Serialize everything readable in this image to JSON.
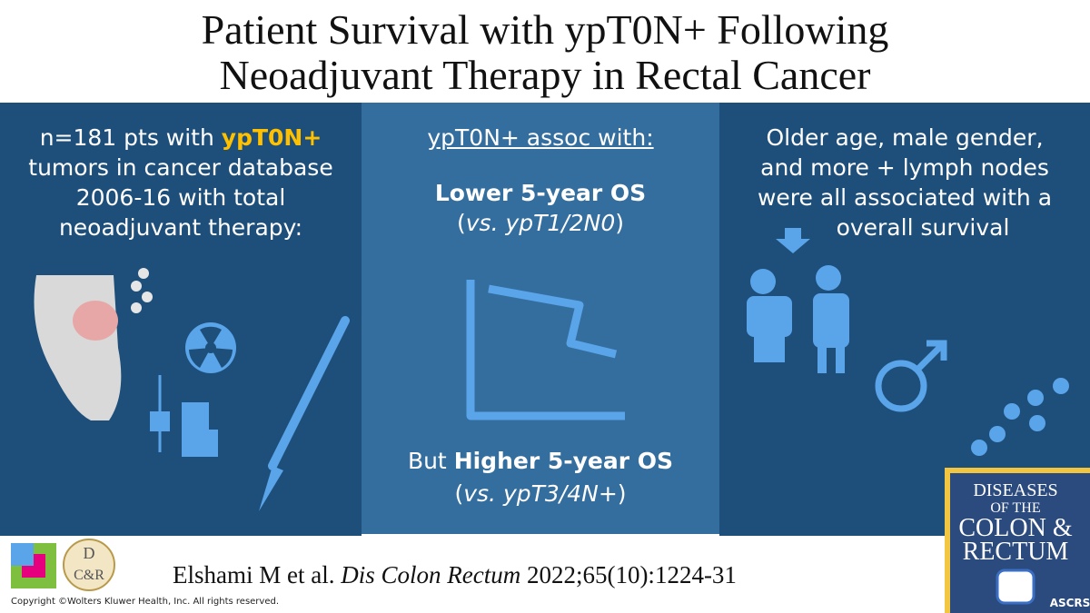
{
  "header": {
    "title_line1": "Patient Survival with ypT0N+ Following",
    "title_line2": "Neoadjuvant Therapy in Rectal Cancer"
  },
  "panels": [
    {
      "lines": [
        [
          "n=181 pts with ",
          "ypT0N+"
        ],
        [
          "tumors in cancer database"
        ],
        [
          "2006-16 with total"
        ],
        [
          "neoadjuvant therapy:"
        ]
      ]
    },
    {
      "heading": "ypT0N+ assoc with:",
      "finding1": {
        "bold": "Lower 5-year OS",
        "open": "(",
        "italic": "vs. ypT1/2N0",
        "close": ")"
      },
      "finding2": {
        "lead": "But ",
        "bold": "Higher 5-year OS",
        "open": "(",
        "italic": "vs. ypT3/4N+",
        "close": ")"
      }
    },
    {
      "lines": [
        "Older age, male gender,",
        "and more + lymph nodes",
        "were all associated with a",
        "overall survival"
      ]
    }
  ],
  "citation": {
    "authors": "Elshami M et al. ",
    "journal": "Dis Colon Rectum",
    "reference": " 2022;65(10):1224-31"
  },
  "copyright": "Copyright ©Wolters Kluwer Health, Inc. All rights reserved.",
  "logo": {
    "top": "D",
    "bottom": "C&R"
  },
  "journal_cover": {
    "lines": [
      "DISEASES",
      "OF THE",
      "COLON &",
      "RECTUM"
    ],
    "society": "ASCRS"
  }
}
